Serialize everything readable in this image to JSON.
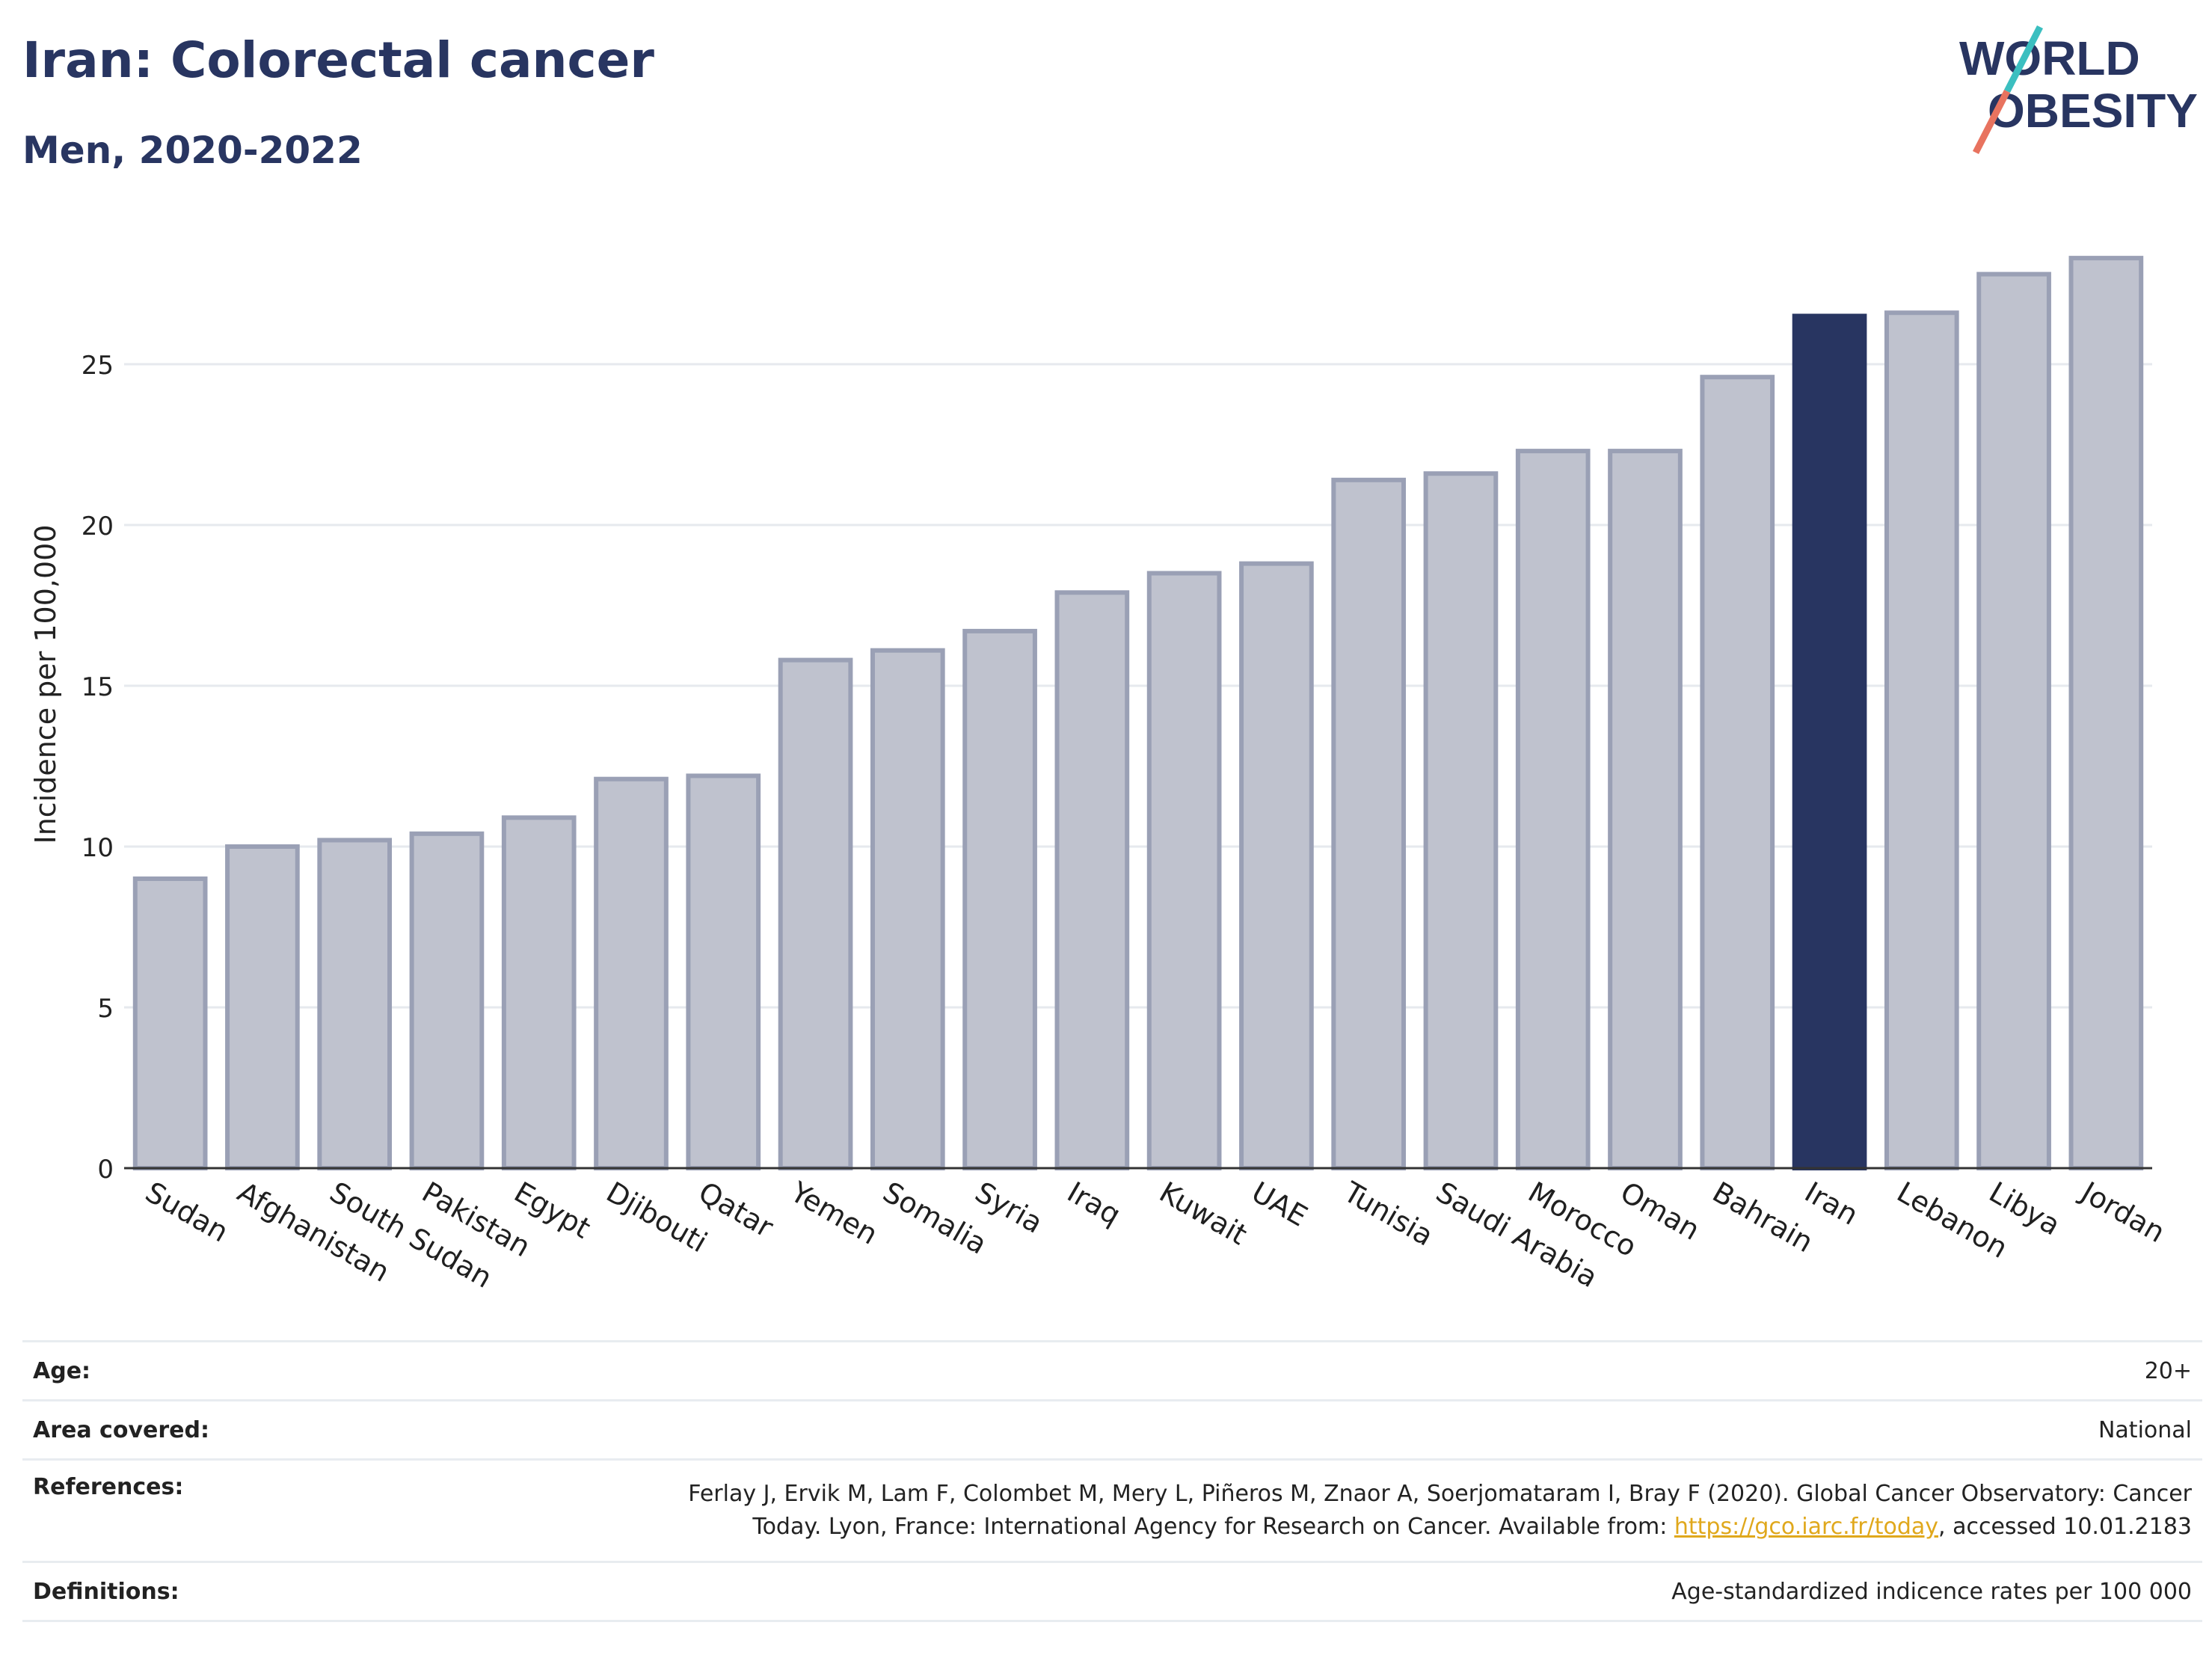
{
  "header": {
    "title": "Iran: Colorectal cancer",
    "subtitle": "Men, 2020-2022"
  },
  "logo": {
    "line1": "WORLD",
    "line2": "OBESITY",
    "text_color": "#283561",
    "slash_colors": [
      "#3bbfc0",
      "#e8735f"
    ]
  },
  "colors": {
    "highlight": "#283561",
    "other": "#bfc2ce",
    "other_border": "#9aa0b5",
    "link": "#e0a81c"
  },
  "chart_data": {
    "type": "bar",
    "ylabel": "Incidence per 100,000",
    "xlabel": "",
    "ylim": [
      0,
      30
    ],
    "yticks": [
      0,
      5,
      10,
      15,
      20,
      25
    ],
    "grid": true,
    "highlight": "Iran",
    "categories": [
      "Sudan",
      "Afghanistan",
      "South Sudan",
      "Pakistan",
      "Egypt",
      "Djibouti",
      "Qatar",
      "Yemen",
      "Somalia",
      "Syria",
      "Iraq",
      "Kuwait",
      "UAE",
      "Tunisia",
      "Saudi Arabia",
      "Morocco",
      "Oman",
      "Bahrain",
      "Iran",
      "Lebanon",
      "Libya",
      "Jordan"
    ],
    "values": [
      9.0,
      10.0,
      10.2,
      10.4,
      10.9,
      12.1,
      12.2,
      15.8,
      16.1,
      16.7,
      17.9,
      18.5,
      18.8,
      21.4,
      21.6,
      22.3,
      22.3,
      24.6,
      26.5,
      26.6,
      27.8,
      28.3
    ]
  },
  "meta": {
    "age_label": "Age:",
    "age_value": "20+",
    "area_label": "Area covered:",
    "area_value": "National",
    "references_label": "References:",
    "references_line1": "Ferlay J, Ervik M, Lam F, Colombet M, Mery L, Piñeros M, Znaor A, Soerjomataram I, Bray F (2020). Global Cancer Observatory: Cancer",
    "references_line2_pre": "Today. Lyon, France: International Agency for Research on Cancer. Available from: ",
    "references_link": "https://gco.iarc.fr/today",
    "references_line2_post": ", accessed 10.01.2183",
    "definitions_label": "Definitions:",
    "definitions_value": "Age-standardized indicence rates per 100 000"
  }
}
